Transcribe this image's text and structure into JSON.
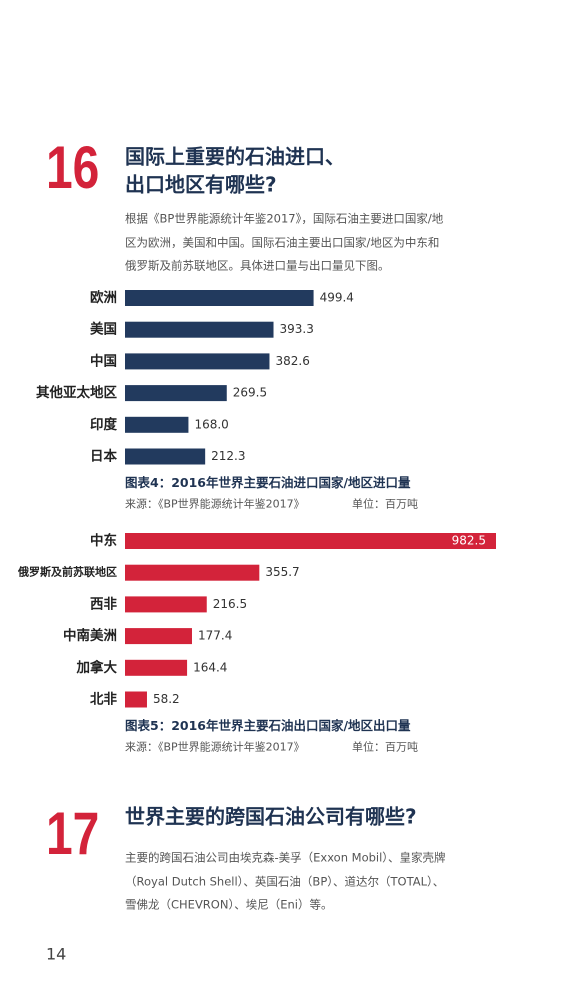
{
  "section16": {
    "number": "16",
    "title_lines": [
      "国际上重要的石油进口、",
      "出口地区有哪些?"
    ],
    "paragraph_lines": [
      "根据《BP世界能源统计年鉴2017》，国际石油主要进口国家/地",
      "区为欧洲，美国和中国。国际石油主要出口国家/地区为中东和",
      "俄罗斯及前苏联地区。具体进口量与出口量见下图。"
    ]
  },
  "chart_data": [
    {
      "type": "bar",
      "orientation": "horizontal",
      "color": "#223a5e",
      "categories": [
        "欧洲",
        "美国",
        "中国",
        "其他亚太地区",
        "印度",
        "日本"
      ],
      "values": [
        499.4,
        393.3,
        382.6,
        269.5,
        168,
        212.3
      ],
      "value_labels": [
        "499.4",
        "393.3",
        "382.6",
        "269.5",
        "168.0",
        "212.3"
      ],
      "title": "图表4：2016年世界主要石油进口国家/地区进口量",
      "source": "来源：《BP世界能源统计年鉴2017》",
      "unit": "单位：百万吨"
    },
    {
      "type": "bar",
      "orientation": "horizontal",
      "color": "#d3233a",
      "categories": [
        "中东",
        "俄罗斯及前苏联地区",
        "西非",
        "中南美洲",
        "加拿大",
        "北非"
      ],
      "values": [
        982.5,
        355.7,
        216.5,
        177.4,
        164.4,
        58.2
      ],
      "title": "图表5：2016年世界主要石油出口国家/地区出口量",
      "source": "来源：《BP世界能源统计年鉴2017》",
      "unit": "单位：百万吨"
    }
  ],
  "section17": {
    "number": "17",
    "title_lines": [
      "世界主要的跨国石油公司有哪些?"
    ],
    "paragraph_lines": [
      "主要的跨国石油公司由埃克森-美孚（Exxon Mobil）、皇家壳牌",
      "（Royal Dutch Shell）、英国石油（BP）、道达尔（TOTAL）、",
      "雪佛龙（CHEVRON）、埃尼（Eni）等。"
    ]
  },
  "page_number": "14"
}
